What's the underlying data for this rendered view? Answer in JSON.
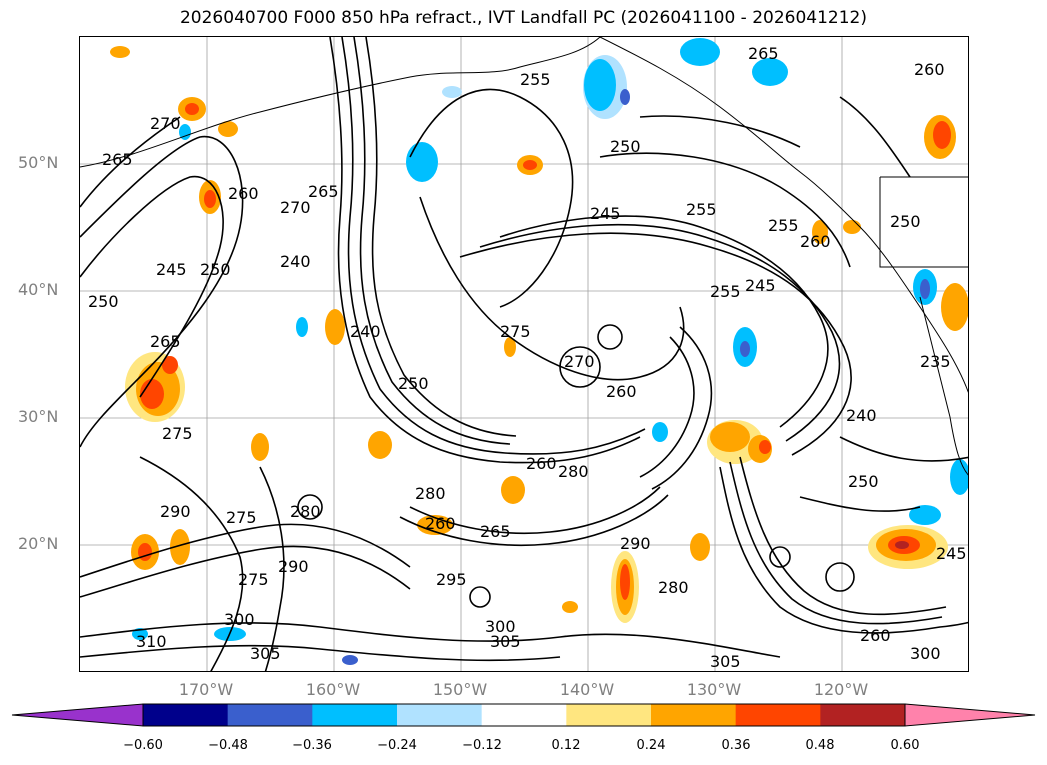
{
  "title": "2026040700 F000 850 hPa refract., IVT Landfall PC (2026041100 - 2026041212)",
  "lat_labels": [
    "50°N",
    "40°N",
    "30°N",
    "20°N"
  ],
  "lon_labels": [
    "170°W",
    "160°W",
    "150°W",
    "140°W",
    "130°W",
    "120°W"
  ],
  "colorbar": {
    "ticks": [
      "−0.60",
      "−0.48",
      "−0.36",
      "−0.24",
      "−0.12",
      "0.12",
      "0.24",
      "0.36",
      "0.48",
      "0.60"
    ],
    "colors": [
      "#9932cc",
      "#00008b",
      "#3a5fcd",
      "#00bfff",
      "#b0e2ff",
      "#ffffff",
      "#ffe680",
      "#ffa500",
      "#ff4500",
      "#b22222",
      "#ff82ab"
    ]
  },
  "contour_labels": [
    "255",
    "265",
    "260",
    "270",
    "265",
    "250",
    "260",
    "270",
    "265",
    "245",
    "255",
    "250",
    "260",
    "250",
    "245",
    "250",
    "255",
    "240",
    "245",
    "240",
    "275",
    "270",
    "260",
    "255",
    "265",
    "275",
    "275",
    "290",
    "280",
    "275",
    "280",
    "260",
    "265",
    "290",
    "280",
    "295",
    "300",
    "305",
    "310",
    "305",
    "300",
    "290",
    "280",
    "245",
    "250",
    "300",
    "305",
    "260",
    "240",
    "250",
    "235",
    "260"
  ]
}
